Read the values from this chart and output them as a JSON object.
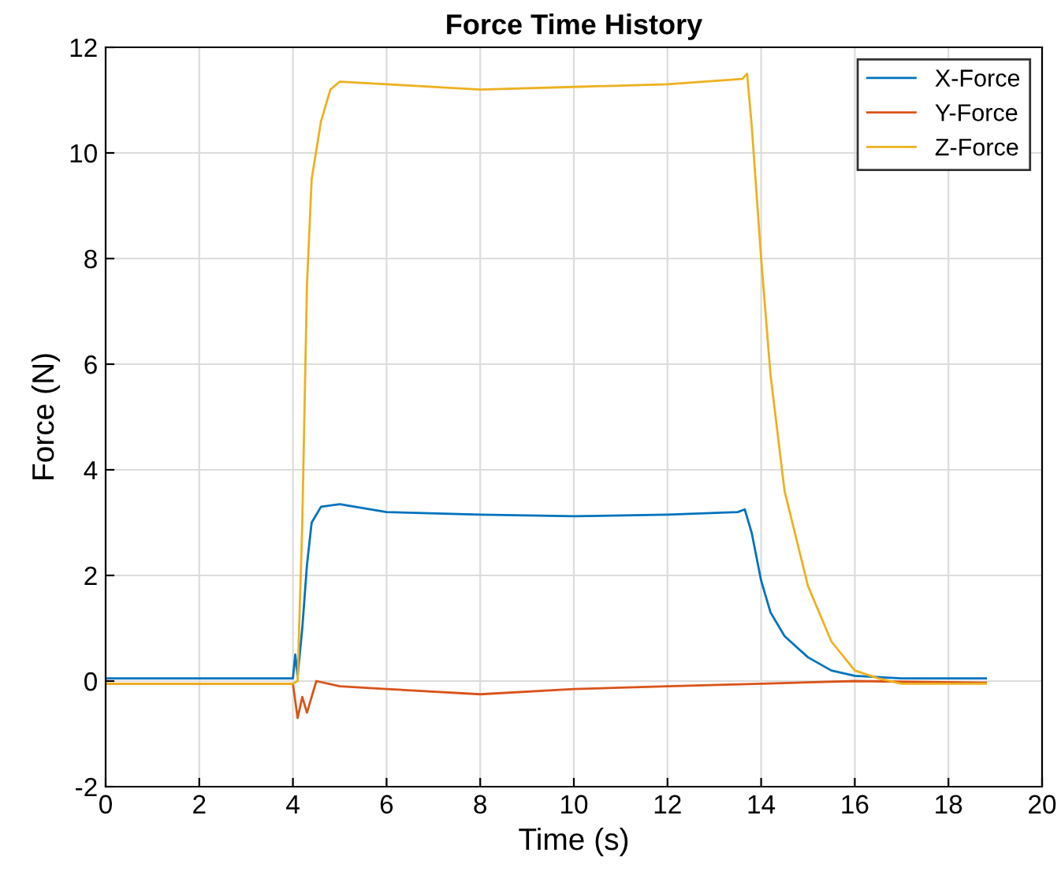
{
  "chart_data": {
    "type": "line",
    "title": "Force Time History",
    "xlabel": "Time (s)",
    "ylabel": "Force (N)",
    "xlim": [
      0,
      20
    ],
    "ylim": [
      -2,
      12
    ],
    "xticks": [
      0,
      2,
      4,
      6,
      8,
      10,
      12,
      14,
      16,
      18,
      20
    ],
    "yticks": [
      -2,
      0,
      2,
      4,
      6,
      8,
      10,
      12
    ],
    "grid": true,
    "legend": "top right",
    "series": [
      {
        "name": "X-Force",
        "color": "#0072bd",
        "x": [
          0,
          2,
          4,
          4.05,
          4.1,
          4.2,
          4.3,
          4.4,
          4.6,
          5,
          6,
          8,
          10,
          12,
          13.5,
          13.65,
          13.8,
          14,
          14.2,
          14.5,
          15,
          15.5,
          16,
          17,
          18.8
        ],
        "values": [
          0.05,
          0.05,
          0.05,
          0.5,
          0.1,
          1.0,
          2.2,
          3.0,
          3.3,
          3.35,
          3.2,
          3.15,
          3.12,
          3.15,
          3.2,
          3.25,
          2.8,
          1.9,
          1.3,
          0.85,
          0.45,
          0.2,
          0.1,
          0.05,
          0.05
        ]
      },
      {
        "name": "Y-Force",
        "color": "#d95319",
        "x": [
          0,
          2,
          4,
          4.1,
          4.2,
          4.3,
          4.5,
          5,
          6,
          8,
          10,
          12,
          14,
          16,
          18.8
        ],
        "values": [
          -0.05,
          -0.05,
          -0.05,
          -0.7,
          -0.3,
          -0.6,
          0,
          -0.1,
          -0.15,
          -0.25,
          -0.15,
          -0.1,
          -0.05,
          0,
          -0.03
        ]
      },
      {
        "name": "Z-Force",
        "color": "#edb120",
        "x": [
          0,
          2,
          4,
          4.1,
          4.2,
          4.3,
          4.4,
          4.6,
          4.8,
          5,
          6,
          8,
          10,
          12,
          13.6,
          13.7,
          13.8,
          14,
          14.2,
          14.5,
          15,
          15.5,
          16,
          16.5,
          17,
          18.8
        ],
        "values": [
          -0.05,
          -0.05,
          -0.05,
          0,
          3,
          7.5,
          9.5,
          10.6,
          11.2,
          11.35,
          11.3,
          11.2,
          11.25,
          11.3,
          11.4,
          11.5,
          10.5,
          8,
          5.8,
          3.6,
          1.8,
          0.75,
          0.2,
          0.05,
          -0.05,
          -0.05
        ]
      }
    ]
  }
}
